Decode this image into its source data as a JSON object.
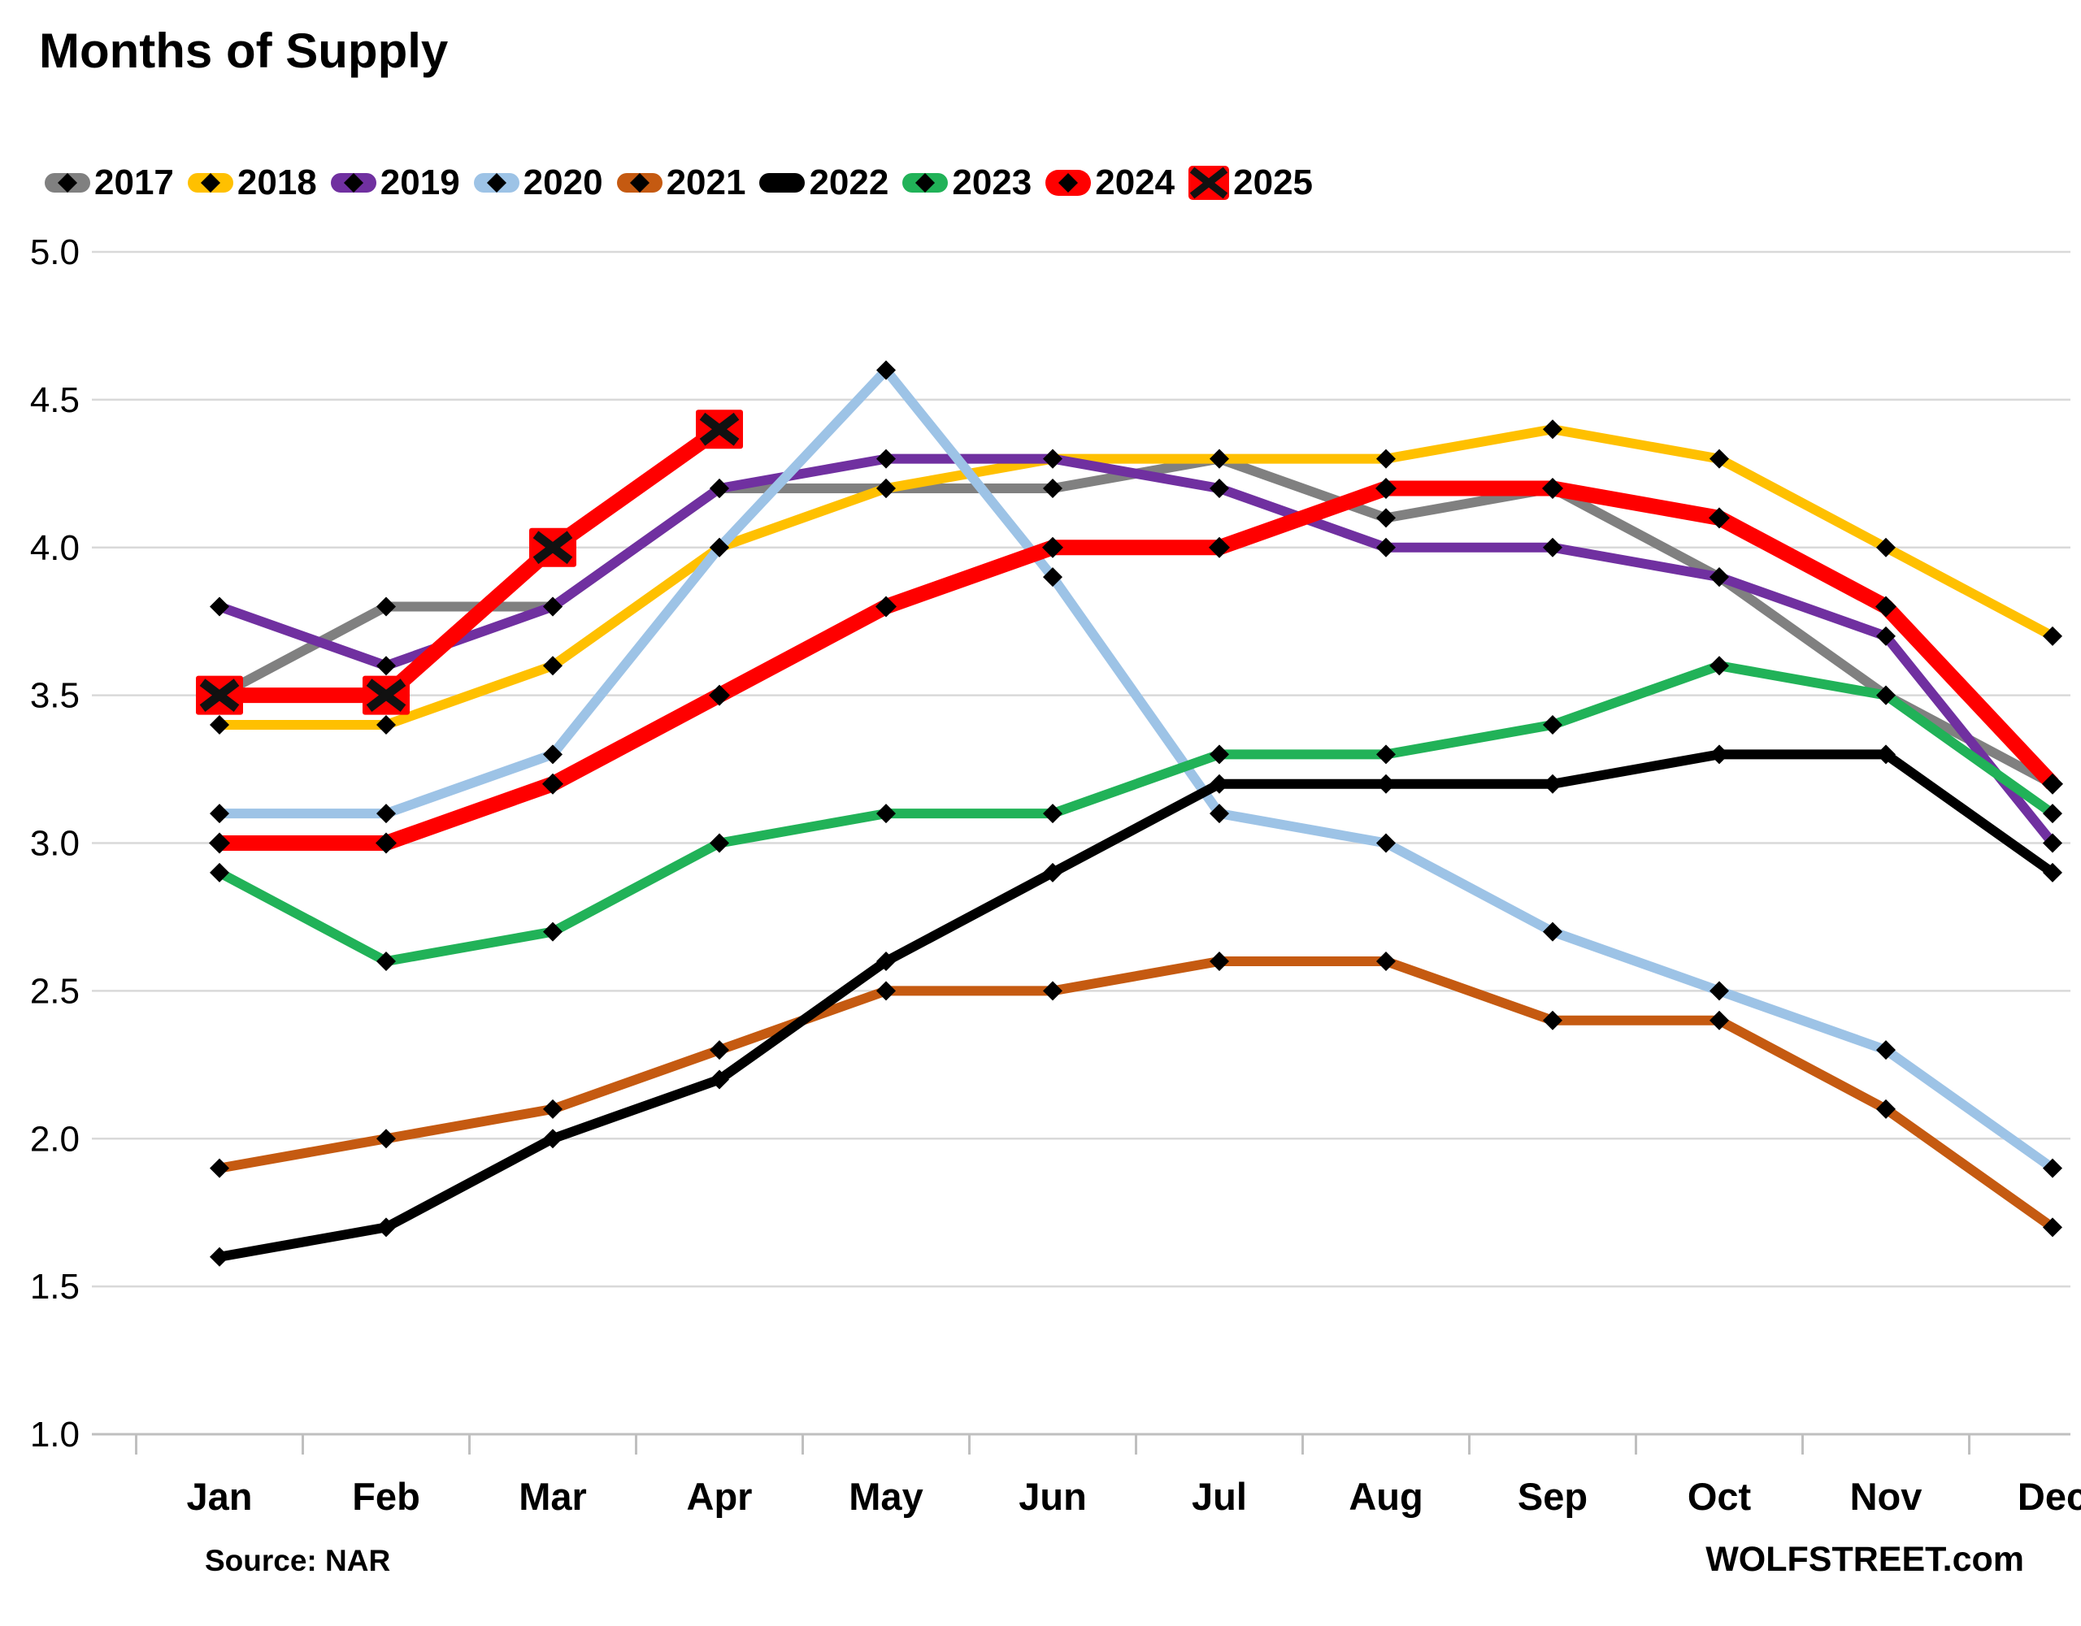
{
  "title": "Months of Supply",
  "footer": {
    "source": "Source: NAR",
    "site": "WOLFSTREET.com"
  },
  "chart_data": {
    "type": "line",
    "title": "Months of Supply",
    "x": [
      "Jan",
      "Feb",
      "Mar",
      "Apr",
      "May",
      "Jun",
      "Jul",
      "Aug",
      "Sep",
      "Oct",
      "Nov",
      "Dec"
    ],
    "ylim": [
      1.0,
      5.0
    ],
    "ytick_step": 0.5,
    "yticks": [
      "5.0",
      "4.5",
      "4.0",
      "3.5",
      "3.0",
      "2.5",
      "2.0",
      "1.5",
      "1.0"
    ],
    "grid": true,
    "legend_position": "top",
    "colors": {
      "grid": "#D9D9D9",
      "axis": "#BFBFBF",
      "marker": "#000000"
    },
    "series": [
      {
        "name": "2017",
        "color": "#808080",
        "width": 12,
        "marker": "diamond",
        "values": [
          3.5,
          3.8,
          3.8,
          4.2,
          4.2,
          4.2,
          4.3,
          4.1,
          4.2,
          3.9,
          3.5,
          3.2
        ]
      },
      {
        "name": "2018",
        "color": "#FFC000",
        "width": 12,
        "marker": "diamond",
        "values": [
          3.4,
          3.4,
          3.6,
          4.0,
          4.2,
          4.3,
          4.3,
          4.3,
          4.4,
          4.3,
          4.0,
          3.7
        ]
      },
      {
        "name": "2019",
        "color": "#7030A0",
        "width": 12,
        "marker": "diamond",
        "values": [
          3.8,
          3.6,
          3.8,
          4.2,
          4.3,
          4.3,
          4.2,
          4.0,
          4.0,
          3.9,
          3.7,
          3.0
        ]
      },
      {
        "name": "2020",
        "color": "#9DC3E6",
        "width": 12,
        "marker": "diamond",
        "values": [
          3.1,
          3.1,
          3.3,
          4.0,
          4.6,
          3.9,
          3.1,
          3.0,
          2.7,
          2.5,
          2.3,
          1.9
        ]
      },
      {
        "name": "2021",
        "color": "#C55A11",
        "width": 12,
        "marker": "diamond",
        "values": [
          1.9,
          2.0,
          2.1,
          2.3,
          2.5,
          2.5,
          2.6,
          2.6,
          2.4,
          2.4,
          2.1,
          1.7
        ]
      },
      {
        "name": "2022",
        "color": "#000000",
        "width": 12,
        "marker": "diamond",
        "values": [
          1.6,
          1.7,
          2.0,
          2.2,
          2.6,
          2.9,
          3.2,
          3.2,
          3.2,
          3.3,
          3.3,
          2.9
        ]
      },
      {
        "name": "2023",
        "color": "#21B258",
        "width": 12,
        "marker": "diamond",
        "values": [
          2.9,
          2.6,
          2.7,
          3.0,
          3.1,
          3.1,
          3.3,
          3.3,
          3.4,
          3.6,
          3.5,
          3.1
        ]
      },
      {
        "name": "2024",
        "color": "#FF0000",
        "width": 19,
        "marker": "diamond",
        "values": [
          3.0,
          3.0,
          3.2,
          3.5,
          3.8,
          4.0,
          4.0,
          4.2,
          4.2,
          4.1,
          3.8,
          3.2
        ]
      },
      {
        "name": "2025",
        "color": "#FF0000",
        "width": 19,
        "marker": "x-square",
        "values": [
          3.5,
          3.5,
          4.0,
          4.4
        ]
      }
    ]
  }
}
